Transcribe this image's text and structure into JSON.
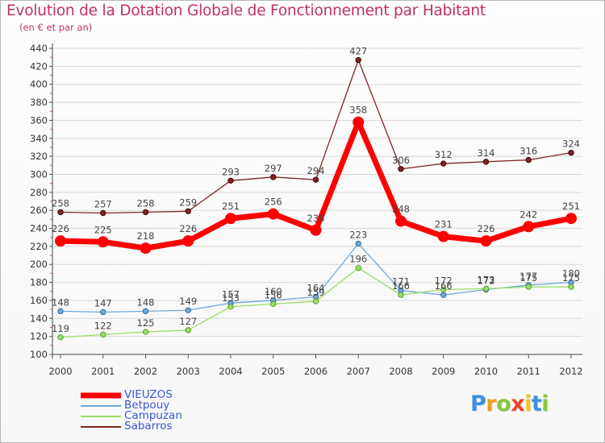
{
  "header": {
    "title": "Evolution de la Dotation Globale de Fonctionnement par Habitant",
    "subtitle": "(en € et par an)"
  },
  "logo": {
    "text": "Proxiti",
    "colors": [
      "#3d8fe0",
      "#f29b1f",
      "#8cc63f",
      "#e8452c",
      "#f0c419",
      "#3d8fe0",
      "#8cc63f"
    ]
  },
  "chart_data": {
    "type": "line",
    "title": "Evolution de la Dotation Globale de Fonctionnement par Habitant",
    "subtitle": "(en € et par an)",
    "x": [
      "2000",
      "2001",
      "2002",
      "2003",
      "2004",
      "2005",
      "2006",
      "2007",
      "2008",
      "2009",
      "2010",
      "2011",
      "2012"
    ],
    "ylim": [
      100,
      440
    ],
    "yticks": [
      100,
      120,
      140,
      160,
      180,
      200,
      220,
      240,
      260,
      280,
      300,
      320,
      340,
      360,
      380,
      400,
      420,
      440
    ],
    "grid": "horizontal",
    "legend_position": "bottom-left",
    "series": [
      {
        "name": "VIEUZOS",
        "color": "#ff0000",
        "emphasis": true,
        "values": [
          226,
          225,
          218,
          226,
          251,
          256,
          238,
          358,
          248,
          231,
          226,
          242,
          251
        ],
        "labels": [
          "226",
          "225",
          "218",
          "226",
          "251",
          "256",
          "238",
          "358",
          "248",
          "231",
          "226",
          "242",
          "251"
        ]
      },
      {
        "name": "Betpouy",
        "color": "#6fa8dc",
        "emphasis": false,
        "values": [
          148,
          147,
          148,
          149,
          157,
          160,
          164,
          223,
          171,
          166,
          172,
          177,
          180
        ],
        "labels": [
          "148",
          "147",
          "148",
          "149",
          "157",
          "160",
          "164",
          "223",
          "171",
          "166",
          "172",
          "177",
          "180"
        ]
      },
      {
        "name": "Campuzan",
        "color": "#99dd66",
        "emphasis": false,
        "values": [
          119,
          122,
          125,
          127,
          153,
          156,
          159,
          196,
          166,
          172,
          173,
          175,
          175
        ],
        "labels": [
          "119",
          "122",
          "125",
          "127",
          "153",
          "156",
          "159",
          "196",
          "166",
          "172",
          "173",
          "175",
          "175"
        ]
      },
      {
        "name": "Sabarros",
        "color": "#7f2424",
        "emphasis": false,
        "values": [
          258,
          257,
          258,
          259,
          293,
          297,
          294,
          427,
          306,
          312,
          314,
          316,
          324
        ],
        "labels": [
          "258",
          "257",
          "258",
          "259",
          "293",
          "297",
          "294",
          "427",
          "306",
          "312",
          "314",
          "316",
          "324"
        ]
      }
    ]
  }
}
